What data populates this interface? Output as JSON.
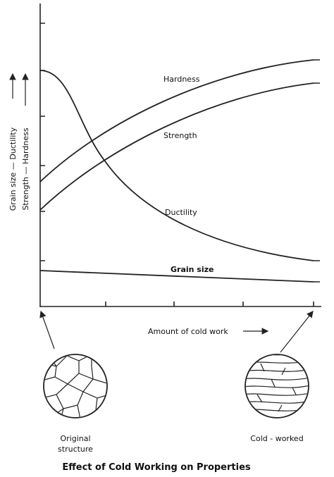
{
  "axes": {
    "y_label_outer": "Grain size — Ductility",
    "y_label_inner": "Strength — Hardness",
    "x_label": "Amount of cold work"
  },
  "curves": [
    {
      "label": "Hardness"
    },
    {
      "label": "Strength"
    },
    {
      "label": "Ductility"
    },
    {
      "label": "Grain size"
    }
  ],
  "microstructures": [
    {
      "label_lines": [
        "Original",
        "structure"
      ]
    },
    {
      "label_lines": [
        "Cold - worked"
      ]
    }
  ],
  "caption": "Effect of Cold Working on Properties"
}
